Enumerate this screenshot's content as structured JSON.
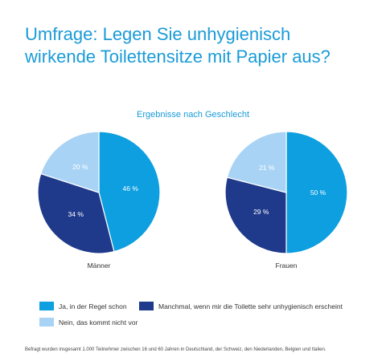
{
  "title_line1": "Umfrage: Legen Sie unhygienisch",
  "title_line2": "wirkende Toilettensitze mit Papier aus?",
  "subtitle": "Ergebnisse nach Geschlecht",
  "colors": {
    "ja": "#0d9fe0",
    "manchmal": "#1f3a8a",
    "nein": "#a9d3f5",
    "label_on_light": "#ffffff",
    "title": "#1a9bd7"
  },
  "legend": [
    {
      "key": "ja",
      "label": "Ja, in der Regel schon"
    },
    {
      "key": "manchmal",
      "label": "Manchmal, wenn mir die Toilette sehr unhygienisch erscheint"
    },
    {
      "key": "nein",
      "label": "Nein, das kommt nicht vor"
    }
  ],
  "footnote": "Befragt wurden insgesamt 1.000 Teilnehmer zwischen 16 und 60 Jahren in Deutschland, der Schweiz, den Niederlanden, Belgien und Italien.",
  "chart_data": [
    {
      "type": "pie",
      "title": "Männer",
      "categories": [
        "Ja, in der Regel schon",
        "Manchmal, wenn mir die Toilette sehr unhygienisch erscheint",
        "Nein, das kommt nicht vor"
      ],
      "keys": [
        "ja",
        "manchmal",
        "nein"
      ],
      "values": [
        46,
        34,
        20
      ],
      "labels": [
        "46 %",
        "34 %",
        "20 %"
      ]
    },
    {
      "type": "pie",
      "title": "Frauen",
      "categories": [
        "Ja, in der Regel schon",
        "Manchmal, wenn mir die Toilette sehr unhygienisch erscheint",
        "Nein, das kommt nicht vor"
      ],
      "keys": [
        "ja",
        "manchmal",
        "nein"
      ],
      "values": [
        50,
        29,
        21
      ],
      "labels": [
        "50 %",
        "29 %",
        "21 %"
      ]
    }
  ]
}
